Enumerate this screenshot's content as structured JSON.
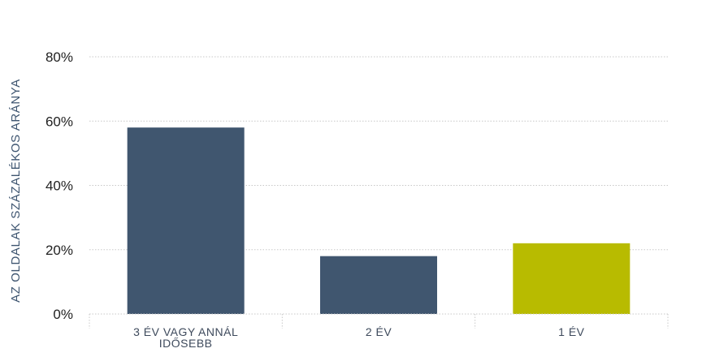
{
  "chart_data": {
    "type": "bar",
    "categories": [
      [
        "3 ÉV VAGY ANNÁL",
        "IDŐSEBB"
      ],
      [
        "2 ÉV"
      ],
      [
        "1 ÉV"
      ]
    ],
    "values": [
      58,
      18,
      22
    ],
    "bar_colors": [
      "#40566f",
      "#40566f",
      "#b8bb00"
    ],
    "ylabel": "AZ OLDALAK SZÁZALÉKOS ARÁNYA",
    "ylim": [
      0,
      80
    ],
    "yticks": [
      0,
      20,
      40,
      60,
      80
    ],
    "ytick_labels": [
      "0%",
      "20%",
      "40%",
      "60%",
      "80%"
    ],
    "grid": true,
    "grid_style": "dotted",
    "legend": "none"
  }
}
